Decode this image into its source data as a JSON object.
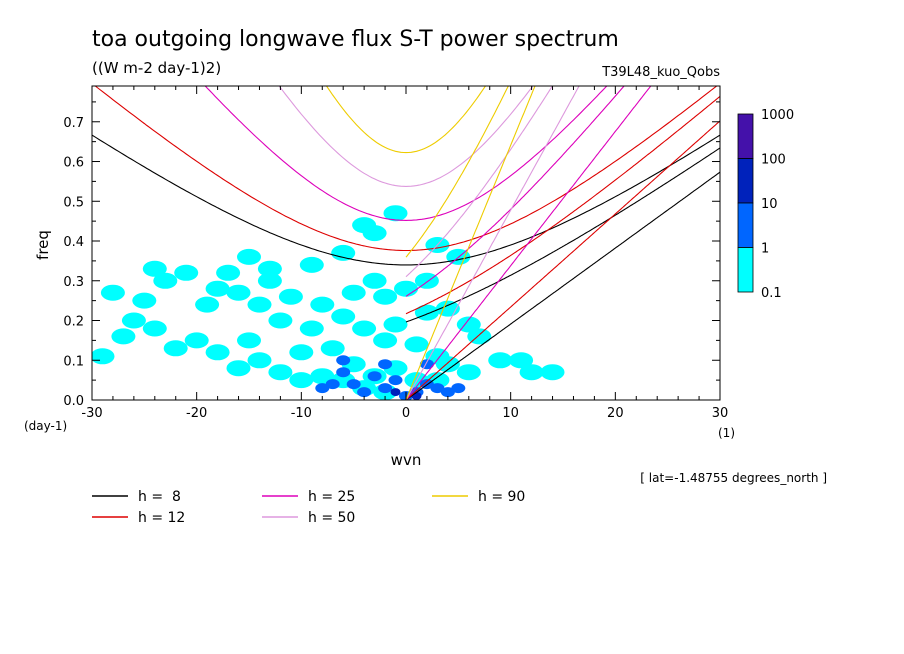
{
  "chart_data": {
    "type": "heatmap",
    "title": "toa outgoing longwave flux S-T power spectrum",
    "subtitle": "((W m-2 day-1)2)",
    "run_label": "T39L48_kuo_Qobs",
    "xlabel": "wvn",
    "ylabel": "freq",
    "x_unit": "(1)",
    "y_unit": "(day-1)",
    "xlim": [
      -30,
      30
    ],
    "ylim": [
      0.0,
      0.79
    ],
    "x_ticks": [
      "-30",
      "-20",
      "-10",
      "0",
      "10",
      "20",
      "30"
    ],
    "y_ticks": [
      "0.0",
      "0.1",
      "0.2",
      "0.3",
      "0.4",
      "0.5",
      "0.6",
      "0.7"
    ],
    "annotation": "[ lat=-1.48755 degrees_north ]",
    "colorbar": {
      "levels": [
        "0.1",
        "1",
        "10",
        "100",
        "1000"
      ],
      "colors": [
        "#00ffff",
        "#0066ff",
        "#0022bb",
        "#4411aa"
      ]
    },
    "dispersion_curves": [
      {
        "label": "h =  8",
        "h": 8,
        "color": "#000000"
      },
      {
        "label": "h = 12",
        "h": 12,
        "color": "#dd0000"
      },
      {
        "label": "h = 25",
        "h": 25,
        "color": "#dd00bb"
      },
      {
        "label": "h = 50",
        "h": 50,
        "color": "#dd99dd"
      },
      {
        "label": "h = 90",
        "h": 90,
        "color": "#eecc00"
      }
    ],
    "spectral_power": {
      "cyan_0.1_to_1": [
        [
          -2,
          0.02
        ],
        [
          -4,
          0.03
        ],
        [
          -6,
          0.05
        ],
        [
          -8,
          0.06
        ],
        [
          -10,
          0.05
        ],
        [
          -12,
          0.07
        ],
        [
          -3,
          0.06
        ],
        [
          -5,
          0.09
        ],
        [
          -1,
          0.08
        ],
        [
          1,
          0.05
        ],
        [
          3,
          0.05
        ],
        [
          -14,
          0.1
        ],
        [
          -16,
          0.08
        ],
        [
          -18,
          0.12
        ],
        [
          -20,
          0.15
        ],
        [
          -22,
          0.13
        ],
        [
          -24,
          0.18
        ],
        [
          -26,
          0.2
        ],
        [
          -25,
          0.25
        ],
        [
          -15,
          0.15
        ],
        [
          -10,
          0.12
        ],
        [
          -7,
          0.13
        ],
        [
          -9,
          0.18
        ],
        [
          -12,
          0.2
        ],
        [
          -14,
          0.24
        ],
        [
          -16,
          0.27
        ],
        [
          -18,
          0.28
        ],
        [
          -19,
          0.24
        ],
        [
          -21,
          0.32
        ],
        [
          -23,
          0.3
        ],
        [
          -17,
          0.32
        ],
        [
          -13,
          0.3
        ],
        [
          -11,
          0.26
        ],
        [
          -8,
          0.24
        ],
        [
          -6,
          0.21
        ],
        [
          -4,
          0.18
        ],
        [
          -2,
          0.15
        ],
        [
          -1,
          0.19
        ],
        [
          1,
          0.14
        ],
        [
          3,
          0.11
        ],
        [
          4,
          0.09
        ],
        [
          6,
          0.07
        ],
        [
          2,
          0.22
        ],
        [
          4,
          0.23
        ],
        [
          6,
          0.19
        ],
        [
          0,
          0.28
        ],
        [
          2,
          0.3
        ],
        [
          -3,
          0.3
        ],
        [
          -5,
          0.27
        ],
        [
          -9,
          0.34
        ],
        [
          -15,
          0.36
        ],
        [
          -6,
          0.37
        ],
        [
          -2,
          0.26
        ],
        [
          -28,
          0.27
        ],
        [
          -27,
          0.16
        ],
        [
          -29,
          0.11
        ],
        [
          7,
          0.16
        ],
        [
          9,
          0.1
        ],
        [
          11,
          0.1
        ],
        [
          12,
          0.07
        ],
        [
          14,
          0.07
        ],
        [
          5,
          0.36
        ],
        [
          3,
          0.39
        ],
        [
          -4,
          0.44
        ],
        [
          -3,
          0.42
        ],
        [
          -1,
          0.47
        ],
        [
          -24,
          0.33
        ],
        [
          -13,
          0.33
        ]
      ],
      "blue_1_to_10": [
        [
          -2,
          0.03
        ],
        [
          -4,
          0.02
        ],
        [
          -1,
          0.05
        ],
        [
          1,
          0.02
        ],
        [
          2,
          0.04
        ],
        [
          3,
          0.03
        ],
        [
          -3,
          0.06
        ],
        [
          -5,
          0.04
        ],
        [
          -6,
          0.07
        ],
        [
          -7,
          0.04
        ],
        [
          -8,
          0.03
        ],
        [
          0,
          0.01
        ],
        [
          2,
          0.09
        ],
        [
          -2,
          0.09
        ],
        [
          -6,
          0.1
        ],
        [
          4,
          0.02
        ],
        [
          5,
          0.03
        ]
      ],
      "darkblue_10_to_100": [
        [
          -1,
          0.02
        ],
        [
          1,
          0.01
        ]
      ]
    }
  }
}
